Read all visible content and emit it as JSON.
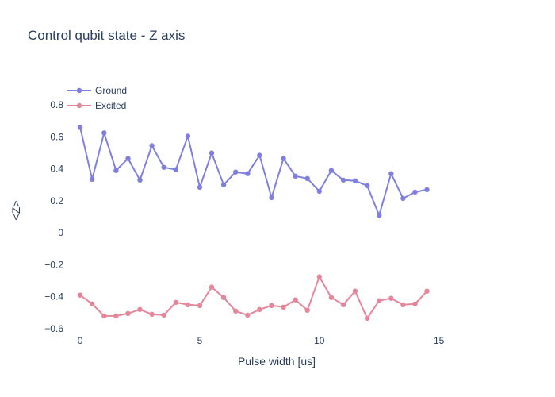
{
  "chart_data": {
    "type": "line",
    "title": "Control qubit state - Z axis",
    "xlabel": "Pulse width [us]",
    "ylabel": "<Z>",
    "xlim": [
      -0.7,
      17.2
    ],
    "ylim": [
      -0.63,
      0.96
    ],
    "xticks": [
      0,
      5,
      10,
      15
    ],
    "yticks": [
      -0.6,
      -0.4,
      -0.2,
      0,
      0.2,
      0.4,
      0.6,
      0.8
    ],
    "ytick_labels": [
      "−0.6",
      "−0.4",
      "−0.2",
      "0",
      "0.2",
      "0.4",
      "0.6",
      "0.8"
    ],
    "grid": false,
    "legend_position": "top-left",
    "x": [
      0,
      0.5,
      1,
      1.5,
      2,
      2.5,
      3,
      3.5,
      4,
      4.5,
      5,
      5.5,
      6,
      6.5,
      7,
      7.5,
      8,
      8.5,
      9,
      9.5,
      10,
      10.5,
      11,
      11.5,
      12,
      12.5,
      13,
      13.5,
      14,
      14.5
    ],
    "series": [
      {
        "name": "Ground",
        "color": "#7f7fdf",
        "values": [
          0.66,
          0.335,
          0.625,
          0.39,
          0.465,
          0.33,
          0.545,
          0.41,
          0.395,
          0.605,
          0.285,
          0.5,
          0.3,
          0.38,
          0.37,
          0.485,
          0.22,
          0.465,
          0.355,
          0.34,
          0.26,
          0.39,
          0.33,
          0.325,
          0.295,
          0.11,
          0.37,
          0.215,
          0.255,
          0.27
        ]
      },
      {
        "name": "Excited",
        "color": "#e5869a",
        "values": [
          -0.39,
          -0.445,
          -0.52,
          -0.52,
          -0.505,
          -0.48,
          -0.51,
          -0.515,
          -0.435,
          -0.45,
          -0.455,
          -0.34,
          -0.405,
          -0.49,
          -0.515,
          -0.48,
          -0.455,
          -0.465,
          -0.42,
          -0.485,
          -0.275,
          -0.405,
          -0.45,
          -0.365,
          -0.535,
          -0.425,
          -0.41,
          -0.45,
          -0.445,
          -0.365
        ]
      }
    ]
  }
}
